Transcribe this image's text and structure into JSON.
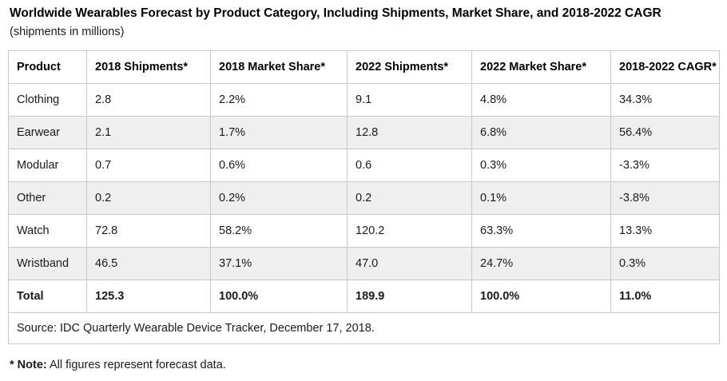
{
  "title": "Worldwide Wearables Forecast by Product Category, Including Shipments, Market Share, and 2018-2022 CAGR",
  "subtitle": "(shipments in millions)",
  "table": {
    "headers": [
      "Product",
      "2018 Shipments*",
      "2018 Market Share*",
      "2022 Shipments*",
      "2022 Market Share*",
      "2018-2022 CAGR*"
    ],
    "rows": [
      [
        "Clothing",
        "2.8",
        "2.2%",
        "9.1",
        "4.8%",
        "34.3%"
      ],
      [
        "Earwear",
        "2.1",
        "1.7%",
        "12.8",
        "6.8%",
        "56.4%"
      ],
      [
        "Modular",
        "0.7",
        "0.6%",
        "0.6",
        "0.3%",
        "-3.3%"
      ],
      [
        "Other",
        "0.2",
        "0.2%",
        "0.2",
        "0.1%",
        "-3.8%"
      ],
      [
        "Watch",
        "72.8",
        "58.2%",
        "120.2",
        "63.3%",
        "13.3%"
      ],
      [
        "Wristband",
        "46.5",
        "37.1%",
        "47.0",
        "24.7%",
        "0.3%"
      ]
    ],
    "total_row": [
      "Total",
      "125.3",
      "100.0%",
      "189.9",
      "100.0%",
      "11.0%"
    ],
    "source": "Source: IDC Quarterly Wearable Device Tracker, December 17, 2018."
  },
  "note": {
    "label": "* Note:",
    "text": " All figures represent forecast data."
  },
  "colors": {
    "row_alt": "#efefef",
    "border_outer": "#4d4d4d",
    "border_inner": "#c9c9c9"
  },
  "chart_data": {
    "type": "table",
    "title": "Worldwide Wearables Forecast by Product Category, Including Shipments, Market Share, and 2018-2022 CAGR",
    "units": "shipments in millions",
    "columns": [
      "Product",
      "2018 Shipments",
      "2018 Market Share",
      "2022 Shipments",
      "2022 Market Share",
      "2018-2022 CAGR"
    ],
    "rows": [
      {
        "product": "Clothing",
        "shipments_2018": 2.8,
        "market_share_2018_pct": 2.2,
        "shipments_2022": 9.1,
        "market_share_2022_pct": 4.8,
        "cagr_2018_2022_pct": 34.3
      },
      {
        "product": "Earwear",
        "shipments_2018": 2.1,
        "market_share_2018_pct": 1.7,
        "shipments_2022": 12.8,
        "market_share_2022_pct": 6.8,
        "cagr_2018_2022_pct": 56.4
      },
      {
        "product": "Modular",
        "shipments_2018": 0.7,
        "market_share_2018_pct": 0.6,
        "shipments_2022": 0.6,
        "market_share_2022_pct": 0.3,
        "cagr_2018_2022_pct": -3.3
      },
      {
        "product": "Other",
        "shipments_2018": 0.2,
        "market_share_2018_pct": 0.2,
        "shipments_2022": 0.2,
        "market_share_2022_pct": 0.1,
        "cagr_2018_2022_pct": -3.8
      },
      {
        "product": "Watch",
        "shipments_2018": 72.8,
        "market_share_2018_pct": 58.2,
        "shipments_2022": 120.2,
        "market_share_2022_pct": 63.3,
        "cagr_2018_2022_pct": 13.3
      },
      {
        "product": "Wristband",
        "shipments_2018": 46.5,
        "market_share_2018_pct": 37.1,
        "shipments_2022": 47.0,
        "market_share_2022_pct": 24.7,
        "cagr_2018_2022_pct": 0.3
      },
      {
        "product": "Total",
        "shipments_2018": 125.3,
        "market_share_2018_pct": 100.0,
        "shipments_2022": 189.9,
        "market_share_2022_pct": 100.0,
        "cagr_2018_2022_pct": 11.0
      }
    ],
    "source": "Source: IDC Quarterly Wearable Device Tracker, December 17, 2018.",
    "footnote": "* Note: All figures represent forecast data."
  }
}
